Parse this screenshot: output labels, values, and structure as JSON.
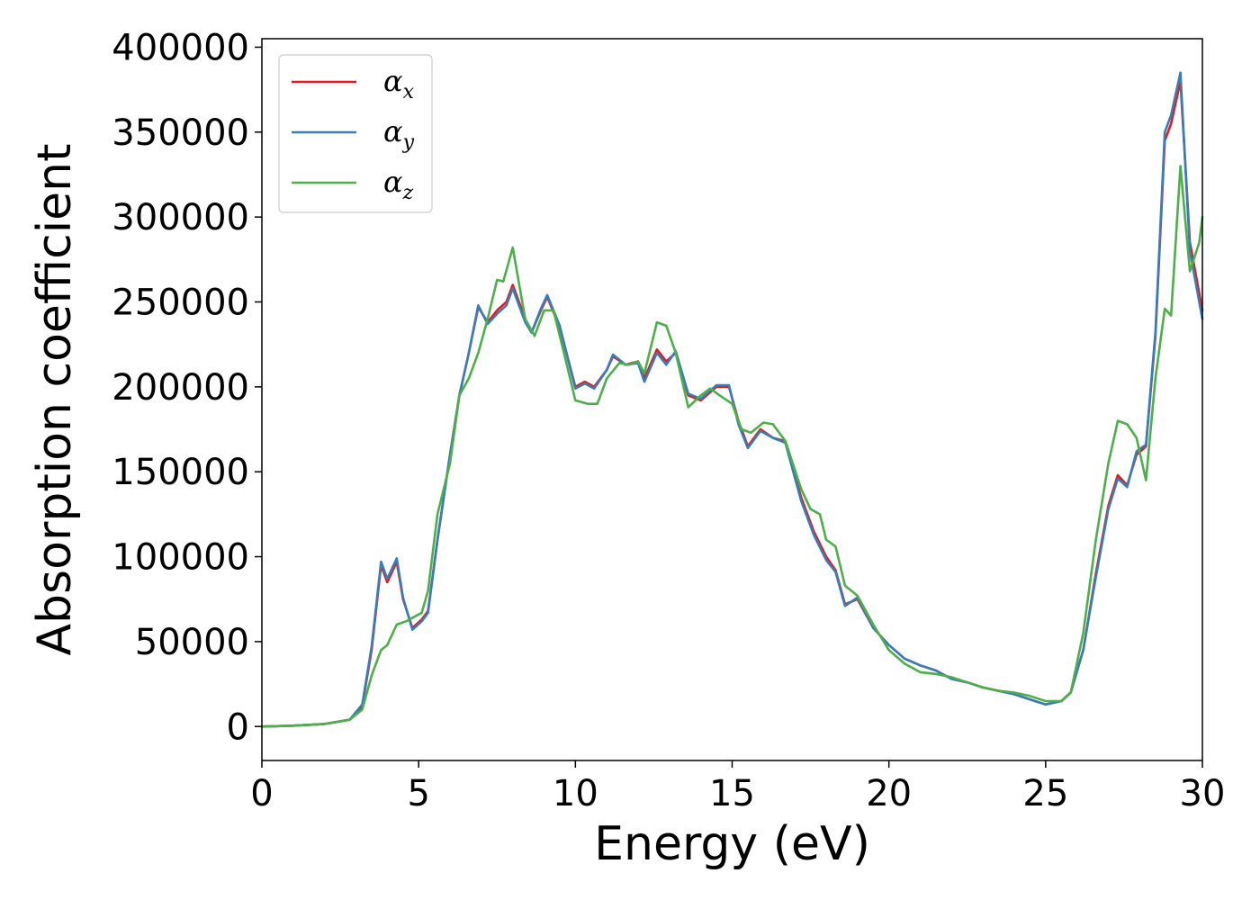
{
  "chart_data": {
    "type": "line",
    "xlabel": "Energy (eV)",
    "ylabel": "Absorption coefficient",
    "xlim": [
      0,
      30
    ],
    "ylim": [
      -20000,
      405000
    ],
    "xticks": [
      0,
      5,
      10,
      15,
      20,
      25,
      30
    ],
    "xtick_labels": [
      "0",
      "5",
      "10",
      "15",
      "20",
      "25",
      "30"
    ],
    "yticks": [
      0,
      50000,
      100000,
      150000,
      200000,
      250000,
      300000,
      350000,
      400000
    ],
    "ytick_labels": [
      "0",
      "50000",
      "100000",
      "150000",
      "200000",
      "250000",
      "300000",
      "350000",
      "400000"
    ],
    "grid": false,
    "legend_position": "top-left",
    "series": [
      {
        "name": "α",
        "subscript": "x",
        "color": "#e41a1c",
        "points": [
          [
            0,
            0
          ],
          [
            1,
            500
          ],
          [
            2,
            1500
          ],
          [
            2.8,
            4000
          ],
          [
            3.2,
            12000
          ],
          [
            3.5,
            45000
          ],
          [
            3.8,
            95000
          ],
          [
            4.0,
            85000
          ],
          [
            4.3,
            97000
          ],
          [
            4.5,
            75000
          ],
          [
            4.8,
            58000
          ],
          [
            5.1,
            63000
          ],
          [
            5.3,
            68000
          ],
          [
            5.6,
            110000
          ],
          [
            6.0,
            160000
          ],
          [
            6.3,
            195000
          ],
          [
            6.6,
            220000
          ],
          [
            6.9,
            247000
          ],
          [
            7.2,
            238000
          ],
          [
            7.5,
            245000
          ],
          [
            7.8,
            250000
          ],
          [
            8.0,
            260000
          ],
          [
            8.4,
            240000
          ],
          [
            8.6,
            232000
          ],
          [
            8.9,
            245000
          ],
          [
            9.1,
            253000
          ],
          [
            9.5,
            235000
          ],
          [
            10.0,
            200000
          ],
          [
            10.3,
            203000
          ],
          [
            10.6,
            200000
          ],
          [
            11.0,
            210000
          ],
          [
            11.2,
            218000
          ],
          [
            11.6,
            213000
          ],
          [
            12.0,
            215000
          ],
          [
            12.2,
            205000
          ],
          [
            12.6,
            222000
          ],
          [
            12.9,
            215000
          ],
          [
            13.2,
            220000
          ],
          [
            13.6,
            195000
          ],
          [
            14.0,
            192000
          ],
          [
            14.5,
            200000
          ],
          [
            14.9,
            200000
          ],
          [
            15.2,
            180000
          ],
          [
            15.5,
            165000
          ],
          [
            15.9,
            175000
          ],
          [
            16.3,
            170000
          ],
          [
            16.7,
            168000
          ],
          [
            17.2,
            135000
          ],
          [
            17.6,
            115000
          ],
          [
            18.0,
            100000
          ],
          [
            18.3,
            92000
          ],
          [
            18.6,
            72000
          ],
          [
            19.0,
            75000
          ],
          [
            19.5,
            58000
          ],
          [
            20.0,
            48000
          ],
          [
            20.5,
            40000
          ],
          [
            21.0,
            36000
          ],
          [
            21.5,
            33000
          ],
          [
            22.0,
            28000
          ],
          [
            22.5,
            26000
          ],
          [
            23.0,
            23000
          ],
          [
            23.5,
            21000
          ],
          [
            24.0,
            19000
          ],
          [
            24.5,
            16000
          ],
          [
            25.0,
            13000
          ],
          [
            25.5,
            15000
          ],
          [
            25.8,
            20000
          ],
          [
            26.2,
            45000
          ],
          [
            26.6,
            90000
          ],
          [
            27.0,
            130000
          ],
          [
            27.3,
            148000
          ],
          [
            27.6,
            142000
          ],
          [
            27.9,
            160000
          ],
          [
            28.2,
            165000
          ],
          [
            28.5,
            230000
          ],
          [
            28.8,
            345000
          ],
          [
            29.0,
            355000
          ],
          [
            29.3,
            380000
          ],
          [
            29.6,
            285000
          ],
          [
            29.9,
            255000
          ],
          [
            30.0,
            245000
          ]
        ]
      },
      {
        "name": "α",
        "subscript": "y",
        "color": "#377eb8",
        "points": [
          [
            0,
            0
          ],
          [
            1,
            500
          ],
          [
            2,
            1500
          ],
          [
            2.8,
            4000
          ],
          [
            3.2,
            13000
          ],
          [
            3.5,
            47000
          ],
          [
            3.8,
            97000
          ],
          [
            4.0,
            87000
          ],
          [
            4.3,
            99000
          ],
          [
            4.5,
            76000
          ],
          [
            4.8,
            57000
          ],
          [
            5.1,
            62000
          ],
          [
            5.3,
            67000
          ],
          [
            5.6,
            110000
          ],
          [
            6.0,
            160000
          ],
          [
            6.3,
            195000
          ],
          [
            6.6,
            220000
          ],
          [
            6.9,
            248000
          ],
          [
            7.2,
            237000
          ],
          [
            7.5,
            243000
          ],
          [
            7.8,
            248000
          ],
          [
            8.0,
            258000
          ],
          [
            8.4,
            238000
          ],
          [
            8.6,
            232000
          ],
          [
            8.9,
            246000
          ],
          [
            9.1,
            254000
          ],
          [
            9.5,
            236000
          ],
          [
            10.0,
            199000
          ],
          [
            10.3,
            202000
          ],
          [
            10.6,
            199000
          ],
          [
            11.0,
            210000
          ],
          [
            11.2,
            219000
          ],
          [
            11.6,
            213000
          ],
          [
            12.0,
            214000
          ],
          [
            12.2,
            203000
          ],
          [
            12.6,
            220000
          ],
          [
            12.9,
            213000
          ],
          [
            13.2,
            221000
          ],
          [
            13.6,
            196000
          ],
          [
            14.0,
            193000
          ],
          [
            14.5,
            201000
          ],
          [
            14.9,
            201000
          ],
          [
            15.2,
            178000
          ],
          [
            15.5,
            164000
          ],
          [
            15.9,
            174000
          ],
          [
            16.3,
            170000
          ],
          [
            16.7,
            167000
          ],
          [
            17.2,
            133000
          ],
          [
            17.6,
            113000
          ],
          [
            18.0,
            98000
          ],
          [
            18.3,
            91000
          ],
          [
            18.6,
            71000
          ],
          [
            19.0,
            76000
          ],
          [
            19.5,
            58000
          ],
          [
            20.0,
            48000
          ],
          [
            20.5,
            40000
          ],
          [
            21.0,
            36000
          ],
          [
            21.5,
            33000
          ],
          [
            22.0,
            28000
          ],
          [
            22.5,
            26000
          ],
          [
            23.0,
            23000
          ],
          [
            23.5,
            21000
          ],
          [
            24.0,
            19000
          ],
          [
            24.5,
            16000
          ],
          [
            25.0,
            13000
          ],
          [
            25.5,
            15000
          ],
          [
            25.8,
            20000
          ],
          [
            26.2,
            45000
          ],
          [
            26.6,
            88000
          ],
          [
            27.0,
            128000
          ],
          [
            27.3,
            146000
          ],
          [
            27.6,
            141000
          ],
          [
            27.9,
            162000
          ],
          [
            28.2,
            166000
          ],
          [
            28.5,
            232000
          ],
          [
            28.8,
            350000
          ],
          [
            29.0,
            360000
          ],
          [
            29.3,
            385000
          ],
          [
            29.6,
            280000
          ],
          [
            29.9,
            250000
          ],
          [
            30.0,
            240000
          ]
        ]
      },
      {
        "name": "α",
        "subscript": "z",
        "color": "#4daf4a",
        "points": [
          [
            0,
            0
          ],
          [
            1,
            500
          ],
          [
            2,
            1500
          ],
          [
            2.8,
            4000
          ],
          [
            3.2,
            10000
          ],
          [
            3.5,
            30000
          ],
          [
            3.8,
            45000
          ],
          [
            4.0,
            48000
          ],
          [
            4.3,
            60000
          ],
          [
            4.6,
            62000
          ],
          [
            4.8,
            64000
          ],
          [
            5.1,
            67000
          ],
          [
            5.3,
            80000
          ],
          [
            5.6,
            125000
          ],
          [
            6.0,
            155000
          ],
          [
            6.3,
            195000
          ],
          [
            6.6,
            205000
          ],
          [
            6.9,
            220000
          ],
          [
            7.2,
            240000
          ],
          [
            7.5,
            263000
          ],
          [
            7.7,
            262000
          ],
          [
            8.0,
            282000
          ],
          [
            8.4,
            240000
          ],
          [
            8.7,
            230000
          ],
          [
            9.0,
            245000
          ],
          [
            9.3,
            245000
          ],
          [
            9.7,
            215000
          ],
          [
            10.0,
            192000
          ],
          [
            10.4,
            190000
          ],
          [
            10.7,
            190000
          ],
          [
            11.0,
            205000
          ],
          [
            11.4,
            214000
          ],
          [
            11.7,
            213000
          ],
          [
            12.0,
            215000
          ],
          [
            12.2,
            208000
          ],
          [
            12.6,
            238000
          ],
          [
            12.9,
            236000
          ],
          [
            13.2,
            220000
          ],
          [
            13.6,
            188000
          ],
          [
            14.0,
            195000
          ],
          [
            14.3,
            199000
          ],
          [
            14.6,
            195000
          ],
          [
            15.0,
            190000
          ],
          [
            15.3,
            175000
          ],
          [
            15.6,
            173000
          ],
          [
            16.0,
            179000
          ],
          [
            16.3,
            178000
          ],
          [
            16.7,
            168000
          ],
          [
            17.2,
            140000
          ],
          [
            17.5,
            128000
          ],
          [
            17.8,
            125000
          ],
          [
            18.0,
            110000
          ],
          [
            18.3,
            106000
          ],
          [
            18.6,
            83000
          ],
          [
            19.0,
            77000
          ],
          [
            19.5,
            60000
          ],
          [
            20.0,
            45000
          ],
          [
            20.5,
            37000
          ],
          [
            21.0,
            32000
          ],
          [
            21.5,
            31000
          ],
          [
            22.0,
            29000
          ],
          [
            22.5,
            26000
          ],
          [
            23.0,
            23000
          ],
          [
            23.5,
            21000
          ],
          [
            24.0,
            20000
          ],
          [
            24.5,
            18000
          ],
          [
            25.0,
            15000
          ],
          [
            25.5,
            15000
          ],
          [
            25.8,
            20000
          ],
          [
            26.2,
            55000
          ],
          [
            26.6,
            110000
          ],
          [
            27.0,
            155000
          ],
          [
            27.3,
            180000
          ],
          [
            27.6,
            178000
          ],
          [
            27.9,
            170000
          ],
          [
            28.2,
            145000
          ],
          [
            28.5,
            205000
          ],
          [
            28.8,
            246000
          ],
          [
            29.0,
            242000
          ],
          [
            29.3,
            330000
          ],
          [
            29.6,
            268000
          ],
          [
            29.9,
            285000
          ],
          [
            30.0,
            300000
          ]
        ]
      }
    ]
  }
}
